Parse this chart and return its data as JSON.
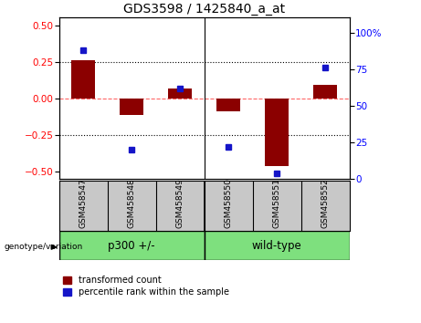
{
  "title": "GDS3598 / 1425840_a_at",
  "samples": [
    "GSM458547",
    "GSM458548",
    "GSM458549",
    "GSM458550",
    "GSM458551",
    "GSM458552"
  ],
  "red_values": [
    0.26,
    -0.11,
    0.07,
    -0.09,
    -0.46,
    0.09
  ],
  "blue_values_pct": [
    88,
    20,
    62,
    22,
    4,
    76
  ],
  "ylim_left": [
    -0.55,
    0.55
  ],
  "ylim_right": [
    0,
    110
  ],
  "yticks_left": [
    -0.5,
    -0.25,
    0,
    0.25,
    0.5
  ],
  "yticks_right": [
    0,
    25,
    50,
    75,
    100
  ],
  "red_color": "#8B0000",
  "blue_color": "#1515C8",
  "bar_width": 0.5,
  "group_label": "genotype/variation",
  "legend_red": "transformed count",
  "legend_blue": "percentile rank within the sample",
  "hline_color": "#FF6666",
  "dotted_color": "black",
  "bg_color": "#FFFFFF",
  "gray_color": "#C8C8C8",
  "green_color": "#7EE07E",
  "group1_label": "p300 +/-",
  "group2_label": "wild-type",
  "title_fontsize": 10,
  "axis_fontsize": 7.5,
  "label_fontsize": 6.5,
  "group_fontsize": 8.5,
  "legend_fontsize": 7
}
